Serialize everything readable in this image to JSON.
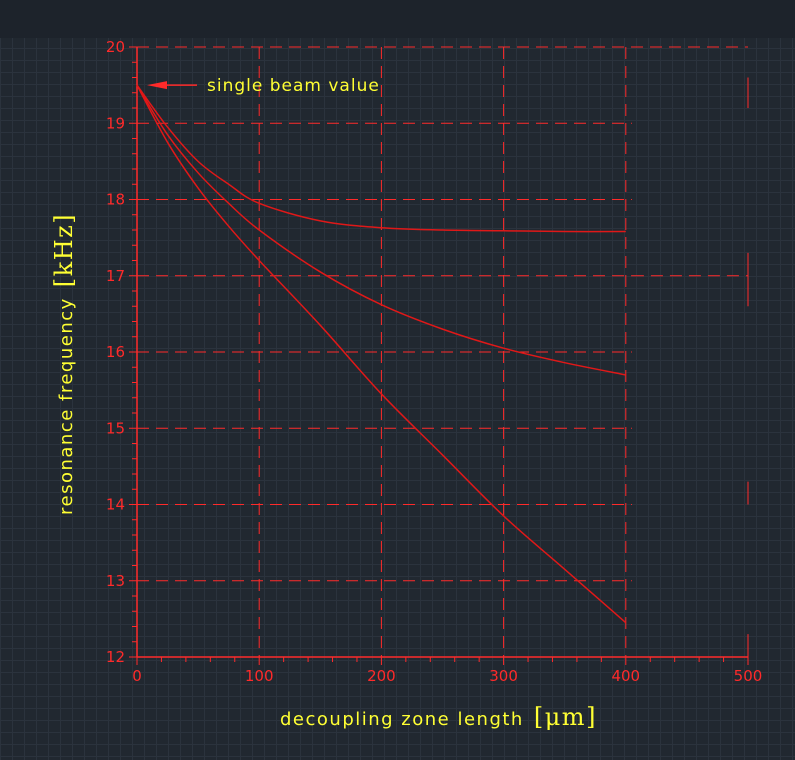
{
  "chart_data": {
    "type": "line",
    "xlabel": "decoupling zone length",
    "xlabel_unit": "[μm]",
    "ylabel": "resonance frequency",
    "ylabel_unit": "[kHz]",
    "xlim": [
      0,
      500
    ],
    "ylim": [
      12,
      20
    ],
    "x_ticks": [
      "0",
      "100",
      "200",
      "300",
      "400",
      "500"
    ],
    "y_ticks": [
      "12",
      "13",
      "14",
      "15",
      "16",
      "17",
      "18",
      "19",
      "20"
    ],
    "grid": true,
    "annotation": {
      "text": "single beam value",
      "x": 0,
      "y": 19.5
    },
    "series": [
      {
        "x": [
          0,
          25,
          50,
          75,
          100,
          150,
          200,
          250,
          300,
          350,
          400
        ],
        "y": [
          19.5,
          18.95,
          18.5,
          18.2,
          17.95,
          17.72,
          17.63,
          17.6,
          17.59,
          17.58,
          17.58
        ]
      },
      {
        "x": [
          0,
          25,
          50,
          75,
          100,
          150,
          200,
          250,
          300,
          350,
          400
        ],
        "y": [
          19.5,
          18.85,
          18.35,
          17.95,
          17.6,
          17.05,
          16.62,
          16.3,
          16.05,
          15.86,
          15.7
        ]
      },
      {
        "x": [
          0,
          25,
          50,
          75,
          100,
          150,
          200,
          250,
          300,
          350,
          400
        ],
        "y": [
          19.5,
          18.75,
          18.15,
          17.65,
          17.2,
          16.35,
          15.45,
          14.65,
          13.85,
          13.15,
          12.45
        ]
      }
    ]
  },
  "colors": {
    "background": "#212830",
    "axis": "#ff2a2a",
    "curve": "#e01818",
    "label": "#ffff33"
  }
}
